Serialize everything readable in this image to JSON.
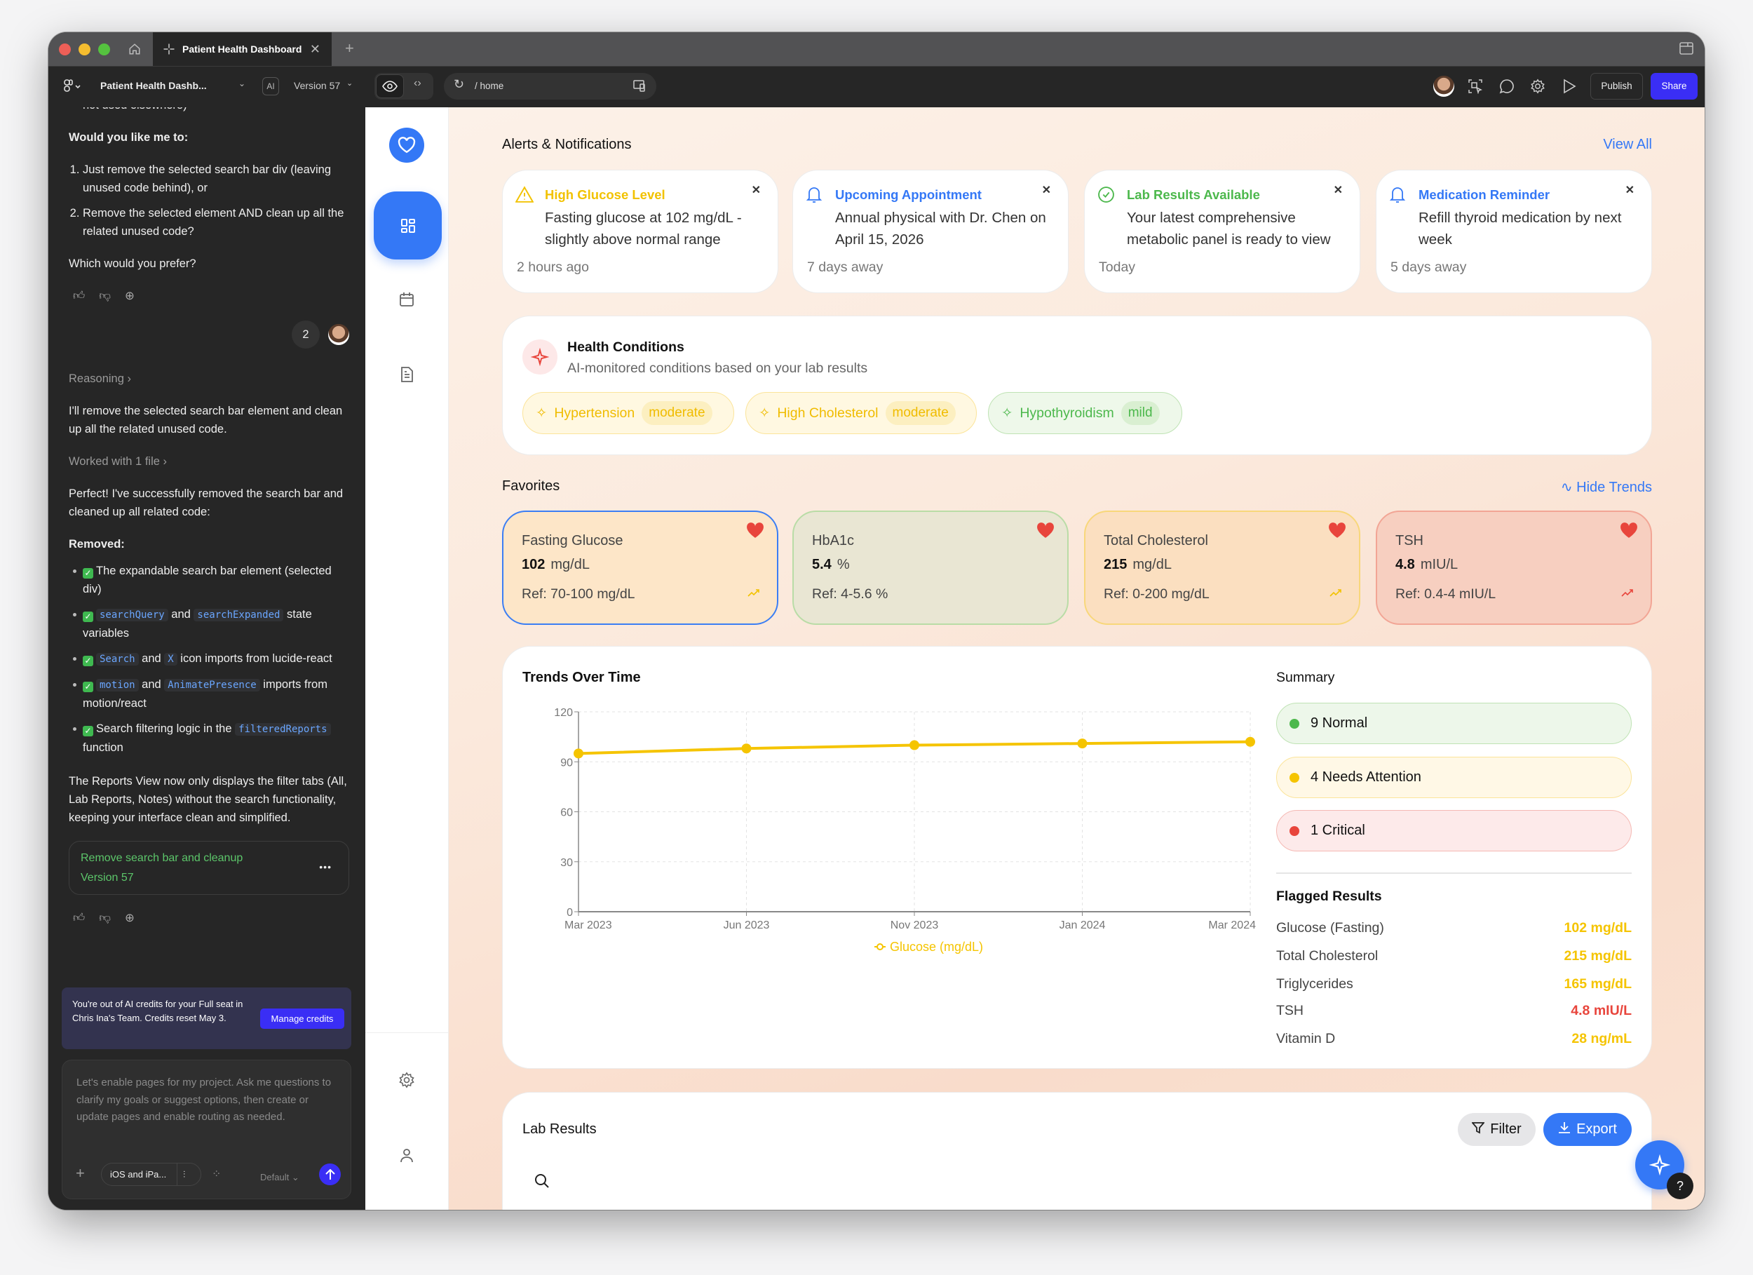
{
  "browser": {
    "tab_title": "Patient Health Dashboard",
    "new_tab": "+"
  },
  "toolbar": {
    "project_name": "Patient Health Dashb...",
    "ai_badge": "AI",
    "version": "Version 57",
    "url": "/ home",
    "publish_label": "Publish",
    "share_label": "Share"
  },
  "chat": {
    "cut_line": "not used elsewhere)",
    "question": "Would you like me to:",
    "options": [
      "Just remove the selected search bar div (leaving unused code behind), or",
      "Remove the selected element AND clean up all the related unused code?"
    ],
    "prompt": "Which would you prefer?",
    "user_badge": "2",
    "reasoning": "Reasoning",
    "reply_intro": "I'll remove the selected search bar element and clean up all the related unused code.",
    "worked_with": "Worked with 1 file",
    "done_text": "Perfect! I've successfully removed the search bar and cleaned up all related code:",
    "removed_title": "Removed:",
    "removed_items": [
      [
        "The expandable search bar element (selected div)"
      ],
      [
        "searchQuery",
        " and ",
        "searchExpanded",
        " state variables"
      ],
      [
        "Search",
        " and ",
        "X",
        " icon imports from lucide-react"
      ],
      [
        "motion",
        " and ",
        "AnimatePresence",
        " imports from motion/react"
      ],
      [
        "Search filtering logic in the ",
        "filteredReports",
        " function"
      ]
    ],
    "summary": "The Reports View now only displays the filter tabs (All, Lab Reports, Notes) without the search functionality, keeping your interface clean and simplified.",
    "version_card": {
      "title": "Remove search bar and cleanup",
      "version": "Version 57",
      "menu": "•••"
    },
    "credits": {
      "text": "You're out of AI credits for your Full seat in Chris Ina's Team. Credits reset May 3.",
      "button": "Manage credits"
    },
    "input": {
      "placeholder": "Let's enable pages for my project. Ask me questions to clarify my goals or suggest options, then create or update pages and enable routing as needed.",
      "device": "iOS and iPa...",
      "model": "Default"
    }
  },
  "alerts": {
    "title": "Alerts & Notifications",
    "view_all": "View All",
    "items": [
      {
        "icon": "warning-icon",
        "title": "High Glucose Level",
        "body": "Fasting glucose at 102 mg/dL - slightly above normal range",
        "time": "2 hours ago",
        "color": "#f2c200"
      },
      {
        "icon": "bell-icon",
        "title": "Upcoming Appointment",
        "body": "Annual physical with Dr. Chen on April 15, 2026",
        "time": "7 days away",
        "color": "#3478f6"
      },
      {
        "icon": "check-circle-icon",
        "title": "Lab Results Available",
        "body": "Your latest comprehensive metabolic panel is ready to view",
        "time": "Today",
        "color": "#4cb84c"
      },
      {
        "icon": "bell-icon",
        "title": "Medication Reminder",
        "body": "Refill thyroid medication by next week",
        "time": "5 days away",
        "color": "#3478f6"
      }
    ]
  },
  "conditions": {
    "title": "Health Conditions",
    "subtitle": "AI-monitored conditions based on your lab results",
    "items": [
      {
        "name": "Hypertension",
        "severity": "moderate"
      },
      {
        "name": "High Cholesterol",
        "severity": "moderate"
      },
      {
        "name": "Hypothyroidism",
        "severity": "mild"
      }
    ]
  },
  "favorites": {
    "title": "Favorites",
    "hide_trends": "Hide Trends",
    "items": [
      {
        "name": "Fasting Glucose",
        "value": "102",
        "unit": "mg/dL",
        "ref": "Ref: 70-100 mg/dL",
        "selected": true
      },
      {
        "name": "HbA1c",
        "value": "5.4",
        "unit": "%",
        "ref": "Ref: 4-5.6 %"
      },
      {
        "name": "Total Cholesterol",
        "value": "215",
        "unit": "mg/dL",
        "ref": "Ref: 0-200 mg/dL"
      },
      {
        "name": "TSH",
        "value": "4.8",
        "unit": "mIU/L",
        "ref": "Ref: 0.4-4 mIU/L"
      }
    ]
  },
  "trends": {
    "title": "Trends Over Time"
  },
  "chart_data": {
    "type": "line",
    "title": "Trends Over Time",
    "categories": [
      "Mar 2023",
      "Jun 2023",
      "Nov 2023",
      "Jan 2024",
      "Mar 2024"
    ],
    "series": [
      {
        "name": "Glucose (mg/dL)",
        "values": [
          95,
          98,
          100,
          101,
          102
        ],
        "color": "#f5c400"
      }
    ],
    "ylim": [
      0,
      120
    ],
    "yticks": [
      0,
      30,
      60,
      90,
      120
    ],
    "grid": true,
    "legend": "bottom"
  },
  "summary": {
    "title": "Summary",
    "statuses": [
      {
        "label": "9 Normal",
        "color": "#4cb84c"
      },
      {
        "label": "4 Needs Attention",
        "color": "#f5c400"
      },
      {
        "label": "1 Critical",
        "color": "#e8453c"
      }
    ],
    "flagged_title": "Flagged Results",
    "flagged": [
      {
        "name": "Glucose (Fasting)",
        "value": "102 mg/dL",
        "color": "#f5c400"
      },
      {
        "name": "Total Cholesterol",
        "value": "215 mg/dL",
        "color": "#f5c400"
      },
      {
        "name": "Triglycerides",
        "value": "165 mg/dL",
        "color": "#f5c400"
      },
      {
        "name": "TSH",
        "value": "4.8 mIU/L",
        "color": "#e8453c"
      },
      {
        "name": "Vitamin D",
        "value": "28 ng/mL",
        "color": "#f5c400"
      }
    ]
  },
  "lab_results": {
    "title": "Lab Results",
    "filter": "Filter",
    "export": "Export"
  },
  "help": "?"
}
